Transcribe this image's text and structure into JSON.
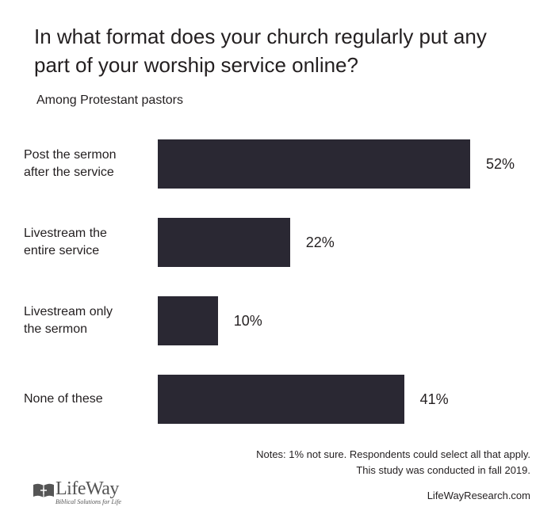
{
  "chart_data": {
    "type": "bar",
    "orientation": "horizontal",
    "title": "In what format does your church regularly put any part of your worship service online?",
    "subtitle": "Among Protestant pastors",
    "categories": [
      [
        "Post the sermon",
        "after the service"
      ],
      [
        "Livestream the",
        "entire service"
      ],
      [
        "Livestream only",
        "the sermon"
      ],
      [
        "None of these"
      ]
    ],
    "values": [
      52,
      22,
      10,
      41
    ],
    "value_labels": [
      "52%",
      "22%",
      "10%",
      "41%"
    ],
    "xlim": [
      0,
      52
    ],
    "grid": false,
    "bar_color": "#2a2833"
  },
  "notes": {
    "line1": "Notes: 1% not sure. Respondents could select all that apply.",
    "line2": "This study was conducted in fall 2019."
  },
  "logo": {
    "name": "LifeWay",
    "tagline": "Biblical Solutions for Life"
  },
  "site": "LifeWayResearch.com"
}
